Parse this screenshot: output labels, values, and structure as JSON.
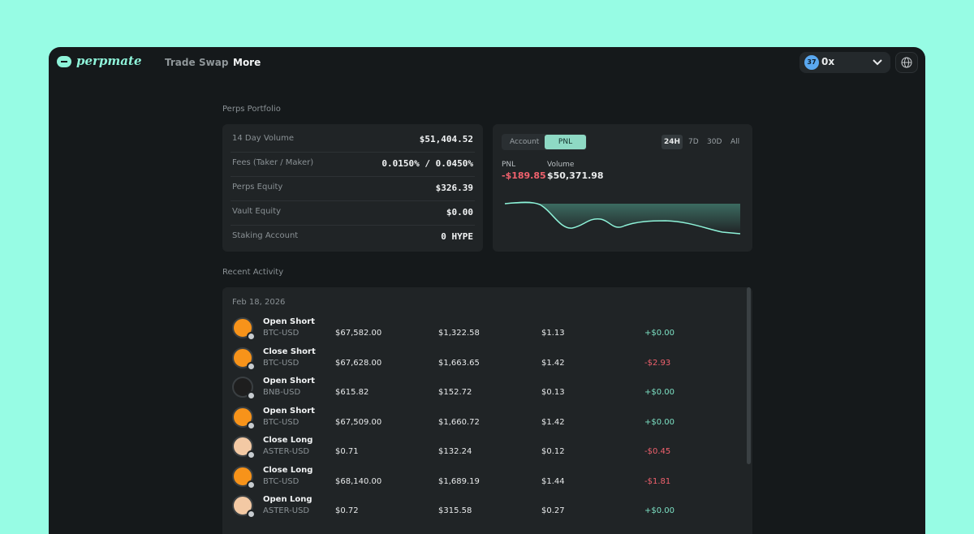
{
  "nav": {
    "brand": "perpmate",
    "links": [
      "Trade",
      "Swap",
      "More"
    ],
    "badge": "37",
    "wallet": "0x"
  },
  "portfolio": {
    "title": "Perps Portfolio",
    "rows": [
      [
        "14 Day Volume",
        "$51,404.52"
      ],
      [
        "Fees (Taker / Maker)",
        "0.0150% / 0.0450%"
      ],
      [
        "Perps Equity",
        "$326.39"
      ],
      [
        "Vault Equity",
        "$0.00"
      ],
      [
        "Staking Account",
        "0 HYPE"
      ]
    ]
  },
  "pnl_card": {
    "tabs": [
      "Account",
      "PNL"
    ],
    "ranges": [
      "24H",
      "7D",
      "30D",
      "All"
    ],
    "stats": [
      {
        "label": "PNL",
        "value": "-$189.85"
      },
      {
        "label": "Volume",
        "value": "$50,371.98"
      }
    ]
  },
  "activity": {
    "title": "Recent Activity",
    "date": "Feb 18, 2026",
    "rows": [
      {
        "action": "Open Short",
        "market": "BTC-USD",
        "icon_color": "#f7931a",
        "cols": [
          "$67,582.00",
          "$1,322.58",
          "$1.13",
          "+$0.00"
        ]
      },
      {
        "action": "Close Short",
        "market": "BTC-USD",
        "icon_color": "#f7931a",
        "cols": [
          "$67,628.00",
          "$1,663.65",
          "$1.42",
          "-$2.93"
        ]
      },
      {
        "action": "Open Short",
        "market": "BNB-USD",
        "icon_color": "#1e1e1e",
        "cols": [
          "$615.82",
          "$152.72",
          "$0.13",
          "+$0.00"
        ]
      },
      {
        "action": "Open Short",
        "market": "BTC-USD",
        "icon_color": "#f7931a",
        "cols": [
          "$67,509.00",
          "$1,660.72",
          "$1.42",
          "+$0.00"
        ]
      },
      {
        "action": "Close Long",
        "market": "ASTER-USD",
        "icon_color": "#f3c9a4",
        "cols": [
          "$0.71",
          "$132.24",
          "$0.12",
          "-$0.45"
        ]
      },
      {
        "action": "Close Long",
        "market": "BTC-USD",
        "icon_color": "#f7931a",
        "cols": [
          "$68,140.00",
          "$1,689.19",
          "$1.44",
          "-$1.81"
        ]
      },
      {
        "action": "Open Long",
        "market": "ASTER-USD",
        "icon_color": "#f3c9a4",
        "cols": [
          "$0.72",
          "$315.58",
          "$0.27",
          "+$0.00"
        ]
      }
    ]
  }
}
